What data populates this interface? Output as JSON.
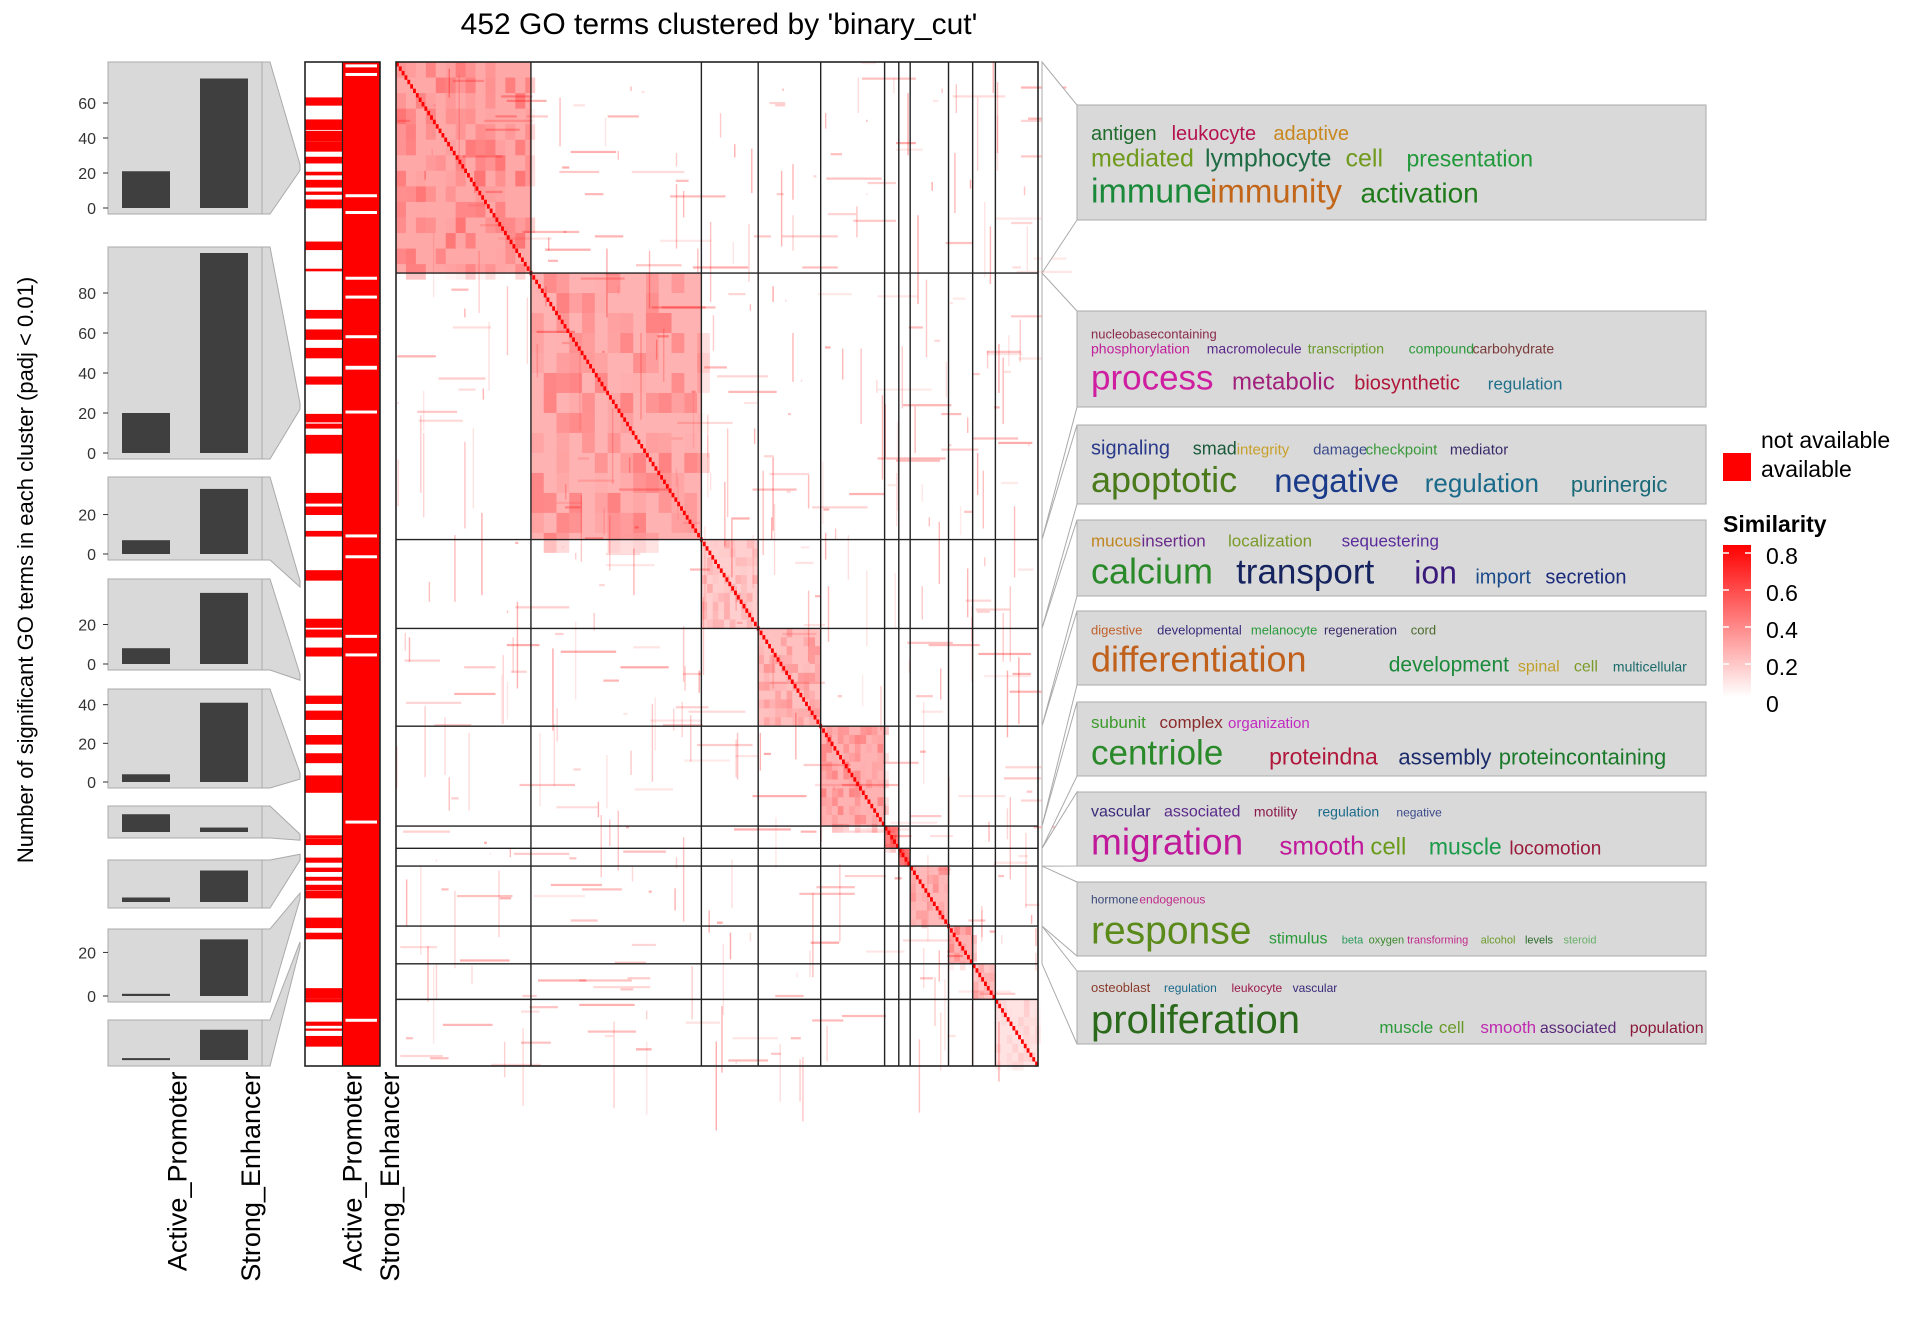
{
  "title": "452 GO terms clustered by 'binary_cut'",
  "y_axis_label": "Number of significant GO terms in each cluster (padj < 0.01)",
  "columns": [
    "Active_Promoter",
    "Strong_Enhancer"
  ],
  "availability_legend": {
    "not_available": "not available",
    "available": "available"
  },
  "similarity_legend": {
    "title": "Similarity",
    "ticks": [
      "0.8",
      "0.6",
      "0.4",
      "0.2",
      "0"
    ]
  },
  "colors": {
    "high": "#ff0000",
    "low": "#ffffff",
    "bar": "#3f3f3f",
    "panel": "#d9d9d9"
  },
  "chart_data": {
    "type": "heatmap",
    "title": "452 GO terms clustered by 'binary_cut'",
    "n_terms": 452,
    "color_range": [
      0,
      0.8
    ],
    "cluster_sizes": [
      95,
      120,
      40,
      44,
      45,
      10,
      8,
      27,
      17,
      16,
      30
    ],
    "cluster_bars": [
      {
        "Active_Promoter": 21,
        "Strong_Enhancer": 74,
        "ticks": [
          "0",
          "20",
          "40",
          "60"
        ]
      },
      {
        "Active_Promoter": 20,
        "Strong_Enhancer": 100,
        "ticks": [
          "0",
          "20",
          "40",
          "60",
          "80"
        ]
      },
      {
        "Active_Promoter": 7,
        "Strong_Enhancer": 33,
        "ticks": [
          "0",
          "20"
        ]
      },
      {
        "Active_Promoter": 8,
        "Strong_Enhancer": 36,
        "ticks": [
          "0",
          "20"
        ]
      },
      {
        "Active_Promoter": 4,
        "Strong_Enhancer": 41,
        "ticks": [
          "0",
          "20",
          "40"
        ]
      },
      {
        "Active_Promoter": 8,
        "Strong_Enhancer": 2,
        "ticks": []
      },
      {
        "Active_Promoter": 1,
        "Strong_Enhancer": 7,
        "ticks": []
      },
      {
        "Active_Promoter": 1,
        "Strong_Enhancer": 26,
        "ticks": [
          "0",
          "20"
        ]
      },
      {
        "Active_Promoter": 1,
        "Strong_Enhancer": 16,
        "ticks": []
      }
    ],
    "word_clouds": [
      [
        [
          "antigen",
          20,
          "#1e6b2c"
        ],
        [
          "leukocyte",
          20,
          "#b5134f"
        ],
        [
          "adaptive",
          20,
          "#c8871e"
        ],
        [
          "|"
        ],
        [
          "mediated",
          25,
          "#6f9a1c"
        ],
        [
          "lymphocyte",
          25,
          "#1e6b44"
        ],
        [
          "cell",
          25,
          "#6f9a1c"
        ],
        [
          "presentation",
          23,
          "#229a3c"
        ],
        [
          "|"
        ],
        [
          "immune",
          34,
          "#1a8a3a"
        ],
        [
          "immunity",
          33,
          "#c2661a"
        ],
        [
          "activation",
          28,
          "#1f7a1a"
        ]
      ],
      [
        [
          "nucleobasecontaining",
          13,
          "#8a2b4a"
        ],
        [
          "|"
        ],
        [
          "phosphorylation",
          14,
          "#c21f9a"
        ],
        [
          "macromolecule",
          14,
          "#5a2a8a"
        ],
        [
          "transcription",
          14,
          "#6a9a2a"
        ],
        [
          "compound",
          14,
          "#2a9a3a"
        ],
        [
          "carbohydrate",
          14,
          "#7a3a3a"
        ],
        [
          "|"
        ],
        [
          "process",
          35,
          "#cf1fa0"
        ],
        [
          "metabolic",
          24,
          "#a0207a"
        ],
        [
          "biosynthetic",
          20,
          "#b0173a"
        ],
        [
          "regulation",
          17,
          "#1f6f8a"
        ]
      ],
      [
        [
          "signaling",
          20,
          "#2a3a8a"
        ],
        [
          "smad",
          18,
          "#1a5a3a"
        ],
        [
          "integrity",
          15,
          "#c8a02a"
        ],
        [
          "damage",
          15,
          "#3a4a8a"
        ],
        [
          "checkpoint",
          15,
          "#3a9a3a"
        ],
        [
          "mediator",
          15,
          "#3a2a6a"
        ],
        [
          "|"
        ],
        [
          "apoptotic",
          36,
          "#4a7a1a"
        ],
        [
          "negative",
          33,
          "#1a3a8a"
        ],
        [
          "regulation",
          26,
          "#1a6a8a"
        ],
        [
          "purinergic",
          22,
          "#1a6a7a"
        ]
      ],
      [
        [
          "mucus",
          17,
          "#c0851f"
        ],
        [
          "insertion",
          17,
          "#6a2a8a"
        ],
        [
          "localization",
          17,
          "#7a9a2a"
        ],
        [
          "sequestering",
          17,
          "#5a2a9a"
        ],
        [
          "|"
        ],
        [
          "calcium",
          36,
          "#2a8a2a"
        ],
        [
          "transport",
          35,
          "#15235f"
        ],
        [
          "ion",
          32,
          "#3a1a7a"
        ],
        [
          "import",
          20,
          "#1a4a8a"
        ],
        [
          "secretion",
          20,
          "#1a2a7a"
        ]
      ],
      [
        [
          "digestive",
          13,
          "#c0602a"
        ],
        [
          "developmental",
          13,
          "#3a2a7a"
        ],
        [
          "melanocyte",
          13,
          "#2a9a3a"
        ],
        [
          "regeneration",
          13,
          "#3a2a6a"
        ],
        [
          "cord",
          13,
          "#4a6a2a"
        ],
        [
          "|"
        ],
        [
          "differentiation",
          36,
          "#c0601a"
        ],
        [
          "development",
          21,
          "#1a8a3a"
        ],
        [
          "spinal",
          16,
          "#c0a02a"
        ],
        [
          "cell",
          16,
          "#7a9a2a"
        ],
        [
          "multicellular",
          14,
          "#1a6a6a"
        ]
      ],
      [
        [
          "subunit",
          17,
          "#3a9a2a"
        ],
        [
          "complex",
          17,
          "#8a2a2a"
        ],
        [
          "organization",
          15,
          "#c02ac0"
        ],
        [
          "|"
        ],
        [
          "centriole",
          35,
          "#2a8a2a"
        ],
        [
          "proteindna",
          23,
          "#b0173a"
        ],
        [
          "assembly",
          22,
          "#1a2a6a"
        ],
        [
          "proteincontaining",
          22,
          "#1a7a2a"
        ]
      ],
      [
        [
          "vascular",
          16,
          "#3a2a7a"
        ],
        [
          "associated",
          16,
          "#5a2a8a"
        ],
        [
          "motility",
          14,
          "#8a1a4a"
        ],
        [
          "regulation",
          14,
          "#1a6a8a"
        ],
        [
          "negative",
          12,
          "#3a4a8a"
        ],
        [
          "|"
        ],
        [
          "migration",
          37,
          "#c01a9a"
        ],
        [
          "smooth",
          26,
          "#c01a9a"
        ],
        [
          "cell",
          24,
          "#6a9a1a"
        ],
        [
          "muscle",
          23,
          "#1a9a4a"
        ],
        [
          "locomotion",
          19,
          "#9a1a3a"
        ]
      ],
      [
        [
          "hormone",
          12,
          "#3a4a7a"
        ],
        [
          "endogenous",
          12,
          "#c02a8a"
        ],
        [
          "|"
        ],
        [
          "response",
          39,
          "#5a8a1a"
        ],
        [
          "stimulus",
          16,
          "#2a9a3a"
        ],
        [
          "beta",
          11,
          "#2a9a5a"
        ],
        [
          "oxygen",
          11,
          "#3a8a2a"
        ],
        [
          "transforming",
          11,
          "#c02a8a"
        ],
        [
          "alcohol",
          11,
          "#6a9a2a"
        ],
        [
          "levels",
          11,
          "#2a6a2a"
        ],
        [
          "steroid",
          11,
          "#6ab06a"
        ]
      ],
      [
        [
          "osteoblast",
          13,
          "#8a3a2a"
        ],
        [
          "regulation",
          12,
          "#1a6a8a"
        ],
        [
          "leukocyte",
          12,
          "#9a1a4a"
        ],
        [
          "vascular",
          12,
          "#3a2a7a"
        ],
        [
          "|"
        ],
        [
          "proliferation",
          40,
          "#2a6a1a"
        ],
        [
          "muscle",
          17,
          "#2a9a3a"
        ],
        [
          "cell",
          17,
          "#6a9a2a"
        ],
        [
          "smooth",
          17,
          "#c02ab0"
        ],
        [
          "associated",
          16,
          "#5a2a7a"
        ],
        [
          "population",
          16,
          "#8a1a3a"
        ]
      ]
    ]
  }
}
